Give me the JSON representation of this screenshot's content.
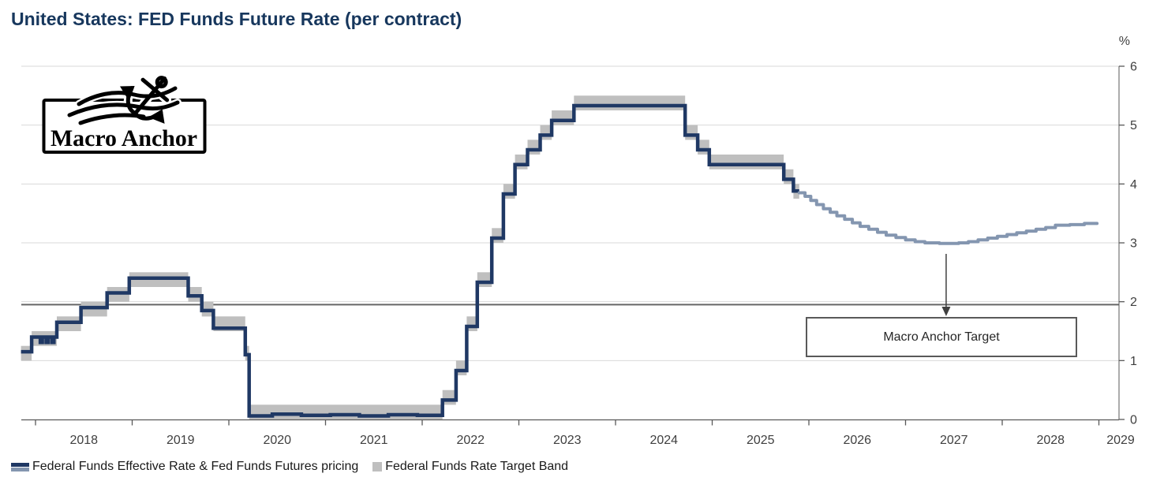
{
  "title": "United States: FED Funds Future Rate (per contract)",
  "logo": {
    "text": "Macro Anchor"
  },
  "annotation": {
    "label": "Macro Anchor Target"
  },
  "y_axis": {
    "unit": "%",
    "ticks": [
      0,
      1,
      2,
      3,
      4,
      5,
      6
    ]
  },
  "x_axis": {
    "years": [
      2018,
      2019,
      2020,
      2021,
      2022,
      2023,
      2024,
      2025,
      2026,
      2027,
      2028,
      2029
    ]
  },
  "legend": {
    "items": [
      {
        "label": "Federal Funds Effective Rate & Fed Funds Futures pricing",
        "swatch": "dual-line"
      },
      {
        "label": "Federal Funds Rate Target Band",
        "swatch": "band-square"
      }
    ]
  },
  "colors": {
    "navy": "#1F3864",
    "steel": "#8496B0",
    "band": "#BFBFBF",
    "grid": "#D9D9D9",
    "axis": "#595959",
    "tick_label": "#3F3F3F",
    "reference_line": "#666666",
    "title": "#17375D",
    "annotation_border": "#595959",
    "arrow": "#404040"
  },
  "chart_data": {
    "type": "line",
    "title": "United States: FED Funds Future Rate (per contract)",
    "ylabel": "%",
    "xlabel": "",
    "x_range": [
      2017.85,
      2029.0
    ],
    "ylim": [
      0,
      6
    ],
    "x_ticks": [
      2018,
      2019,
      2020,
      2021,
      2022,
      2023,
      2024,
      2025,
      2026,
      2027,
      2028,
      2029
    ],
    "y_ticks": [
      0,
      1,
      2,
      3,
      4,
      5,
      6
    ],
    "grid": "horizontal",
    "legend_position": "bottom",
    "reference_line_y": 1.95,
    "annotation_target": {
      "t": 2027.42,
      "value": 3.0
    },
    "series": [
      {
        "name": "Federal Funds Effective Rate (history)",
        "style": "step",
        "color_key": "navy",
        "end": 2025.9,
        "points": [
          [
            2017.85,
            1.15
          ],
          [
            2017.96,
            1.4
          ],
          [
            2018.05,
            1.31
          ],
          [
            2018.07,
            1.4
          ],
          [
            2018.11,
            1.31
          ],
          [
            2018.13,
            1.4
          ],
          [
            2018.17,
            1.31
          ],
          [
            2018.19,
            1.4
          ],
          [
            2018.22,
            1.65
          ],
          [
            2018.47,
            1.9
          ],
          [
            2018.74,
            2.15
          ],
          [
            2018.97,
            2.4
          ],
          [
            2019.58,
            2.1
          ],
          [
            2019.72,
            1.85
          ],
          [
            2019.84,
            1.55
          ],
          [
            2020.17,
            1.1
          ],
          [
            2020.21,
            0.06
          ],
          [
            2020.45,
            0.09
          ],
          [
            2020.75,
            0.07
          ],
          [
            2021.05,
            0.08
          ],
          [
            2021.35,
            0.06
          ],
          [
            2021.65,
            0.08
          ],
          [
            2021.95,
            0.07
          ],
          [
            2022.21,
            0.33
          ],
          [
            2022.35,
            0.83
          ],
          [
            2022.46,
            1.58
          ],
          [
            2022.57,
            2.33
          ],
          [
            2022.72,
            3.08
          ],
          [
            2022.84,
            3.83
          ],
          [
            2022.96,
            4.33
          ],
          [
            2023.09,
            4.58
          ],
          [
            2023.22,
            4.83
          ],
          [
            2023.34,
            5.08
          ],
          [
            2023.57,
            5.33
          ],
          [
            2024.72,
            4.83
          ],
          [
            2024.85,
            4.58
          ],
          [
            2024.97,
            4.33
          ],
          [
            2025.74,
            4.08
          ],
          [
            2025.84,
            3.88
          ]
        ]
      },
      {
        "name": "Fed Funds Futures pricing (forward curve)",
        "style": "step",
        "color_key": "steel",
        "end": 2028.98,
        "points": [
          [
            2025.9,
            3.85
          ],
          [
            2025.96,
            3.79
          ],
          [
            2026.02,
            3.72
          ],
          [
            2026.08,
            3.65
          ],
          [
            2026.15,
            3.58
          ],
          [
            2026.22,
            3.52
          ],
          [
            2026.29,
            3.46
          ],
          [
            2026.37,
            3.4
          ],
          [
            2026.45,
            3.34
          ],
          [
            2026.53,
            3.28
          ],
          [
            2026.62,
            3.23
          ],
          [
            2026.71,
            3.18
          ],
          [
            2026.8,
            3.13
          ],
          [
            2026.9,
            3.09
          ],
          [
            2027.0,
            3.05
          ],
          [
            2027.1,
            3.02
          ],
          [
            2027.2,
            3.0
          ],
          [
            2027.35,
            2.99
          ],
          [
            2027.55,
            3.0
          ],
          [
            2027.65,
            3.02
          ],
          [
            2027.75,
            3.05
          ],
          [
            2027.85,
            3.08
          ],
          [
            2027.95,
            3.11
          ],
          [
            2028.05,
            3.14
          ],
          [
            2028.15,
            3.17
          ],
          [
            2028.25,
            3.2
          ],
          [
            2028.35,
            3.23
          ],
          [
            2028.45,
            3.26
          ],
          [
            2028.55,
            3.3
          ],
          [
            2028.7,
            3.31
          ],
          [
            2028.85,
            3.33
          ]
        ]
      }
    ],
    "band": {
      "name": "Federal Funds Rate Target Band",
      "color_key": "band",
      "segments": [
        [
          2017.85,
          2017.96,
          1.0,
          1.25
        ],
        [
          2017.96,
          2018.22,
          1.25,
          1.5
        ],
        [
          2018.22,
          2018.47,
          1.5,
          1.75
        ],
        [
          2018.47,
          2018.74,
          1.75,
          2.0
        ],
        [
          2018.74,
          2018.97,
          2.0,
          2.25
        ],
        [
          2018.97,
          2019.58,
          2.25,
          2.5
        ],
        [
          2019.58,
          2019.72,
          2.0,
          2.25
        ],
        [
          2019.72,
          2019.84,
          1.75,
          2.0
        ],
        [
          2019.84,
          2020.17,
          1.5,
          1.75
        ],
        [
          2020.17,
          2020.21,
          1.0,
          1.25
        ],
        [
          2020.21,
          2022.21,
          0.0,
          0.25
        ],
        [
          2022.21,
          2022.35,
          0.25,
          0.5
        ],
        [
          2022.35,
          2022.46,
          0.75,
          1.0
        ],
        [
          2022.46,
          2022.57,
          1.5,
          1.75
        ],
        [
          2022.57,
          2022.72,
          2.25,
          2.5
        ],
        [
          2022.72,
          2022.84,
          3.0,
          3.25
        ],
        [
          2022.84,
          2022.96,
          3.75,
          4.0
        ],
        [
          2022.96,
          2023.09,
          4.25,
          4.5
        ],
        [
          2023.09,
          2023.22,
          4.5,
          4.75
        ],
        [
          2023.22,
          2023.34,
          4.75,
          5.0
        ],
        [
          2023.34,
          2023.57,
          5.0,
          5.25
        ],
        [
          2023.57,
          2024.72,
          5.25,
          5.5
        ],
        [
          2024.72,
          2024.85,
          4.75,
          5.0
        ],
        [
          2024.85,
          2024.97,
          4.5,
          4.75
        ],
        [
          2024.97,
          2025.74,
          4.25,
          4.5
        ],
        [
          2025.74,
          2025.84,
          4.0,
          4.25
        ],
        [
          2025.84,
          2025.9,
          3.75,
          4.0
        ]
      ]
    }
  }
}
